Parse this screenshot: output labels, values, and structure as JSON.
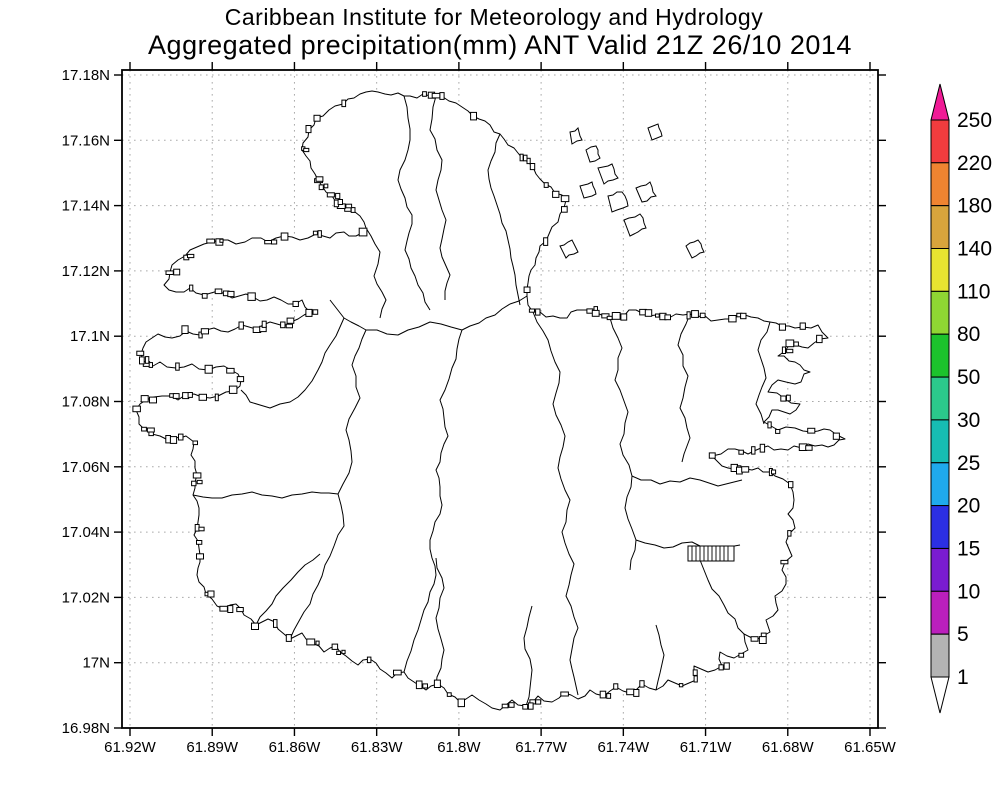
{
  "title": {
    "line1": "Caribbean Institute for Meteorology and Hydrology",
    "line2": "Aggregated precipitation(mm) ANT Valid 21Z 26/10 2014"
  },
  "axes": {
    "lat_ticks": [
      "17.18N",
      "17.16N",
      "17.14N",
      "17.12N",
      "17.1N",
      "17.08N",
      "17.06N",
      "17.04N",
      "17.02N",
      "17N",
      "16.98N"
    ],
    "lon_ticks": [
      "61.92W",
      "61.89W",
      "61.86W",
      "61.83W",
      "61.8W",
      "61.77W",
      "61.74W",
      "61.71W",
      "61.68W",
      "61.65W"
    ]
  },
  "colorbar": {
    "labels_top_to_bottom": [
      "250",
      "220",
      "180",
      "140",
      "110",
      "80",
      "50",
      "30",
      "25",
      "20",
      "15",
      "10",
      "5",
      "1"
    ],
    "segment_colors_top_to_bottom": [
      "#f13c3e",
      "#ef8431",
      "#d8a43c",
      "#e7e431",
      "#8fd633",
      "#1cc32c",
      "#2bc98b",
      "#17bcb2",
      "#1fa9ec",
      "#2b2fe3",
      "#7a1cd1",
      "#bb1fbc",
      "#b3b3b3"
    ],
    "arrow_top_color": "#f01b96",
    "arrow_bottom_color": "#ffffff",
    "outline_color": "#000000"
  },
  "chart_data": {
    "type": "map",
    "title": "Aggregated precipitation(mm) ANT Valid 21Z 26/10 2014",
    "organization": "Caribbean Institute for Meteorology and Hydrology",
    "region": "ANT",
    "units": "mm",
    "valid_time": "21Z 26/10 2014",
    "lat_range": [
      "16.98N",
      "17.18N"
    ],
    "lon_range": [
      "61.92W",
      "61.65W"
    ],
    "scale_levels": [
      1,
      5,
      10,
      15,
      20,
      25,
      30,
      50,
      80,
      110,
      140,
      180,
      220,
      250
    ],
    "shading_on_map": "none (all catchment polygons unshaded / below lowest level)"
  },
  "style": {
    "grid_color": "#aaaaaa",
    "line_color": "#000000",
    "background": "#ffffff"
  }
}
